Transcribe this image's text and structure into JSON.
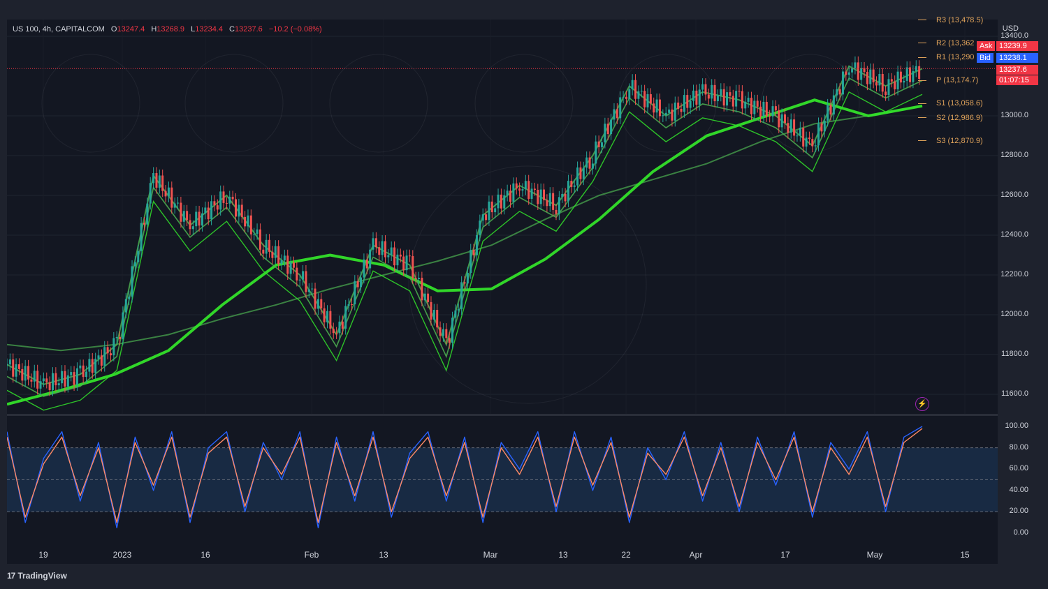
{
  "header": {
    "symbol": "US 100, 4h, CAPITALCOM",
    "o_label": "O",
    "o_value": "13247.4",
    "h_label": "H",
    "h_value": "13268.9",
    "l_label": "L",
    "l_value": "13234.4",
    "c_label": "C",
    "c_value": "13237.6",
    "change": "−10.2 (−0.08%)"
  },
  "currency": "USD",
  "tags": {
    "ask_label": "Ask",
    "ask_value": "13239.9",
    "bid_label": "Bid",
    "bid_value": "13238.1",
    "last_value": "13237.6",
    "countdown": "01:07:15"
  },
  "pivots": [
    {
      "label": "R3 (13,478.5)",
      "value": 13478.5
    },
    {
      "label": "R2 (13,362",
      "value": 13362
    },
    {
      "label": "R1 (13,290",
      "value": 13290
    },
    {
      "label": "P (13,174.7)",
      "value": 13174.7
    },
    {
      "label": "S1 (13,058.6)",
      "value": 13058.6
    },
    {
      "label": "S2 (12,986.9)",
      "value": 12986.9
    },
    {
      "label": "S3 (12,870.9)",
      "value": 12870.9
    }
  ],
  "branding": {
    "logo": "17",
    "name": "TradingView"
  },
  "colors": {
    "up": "#26a69a",
    "down": "#ef5350",
    "ribbon_up": "#33e02a",
    "ribbon_down": "#e0231c",
    "ma_up": "#4caf50",
    "ma_down": "#e57373",
    "stoch_k": "#2962ff",
    "stoch_d": "#ff8a65",
    "pivot": "#e0a35b",
    "band": "#1e3a5f"
  },
  "chart_data": [
    {
      "type": "line",
      "title": "",
      "ylabel": "",
      "ylim": [
        11500,
        13500
      ],
      "y_ticks": [
        "11600.0",
        "11800.0",
        "12000.0",
        "12200.0",
        "12400.0",
        "12600.0",
        "12800.0",
        "13000.0",
        "13400.0"
      ],
      "x_ticks": [
        "19",
        "2023",
        "16",
        "Feb",
        "13",
        "Mar",
        "13",
        "22",
        "Apr",
        "17",
        "May",
        "15"
      ],
      "last_price": 13237.6,
      "series": [
        {
          "values": [
            11850,
            11820,
            11850,
            11900,
            11980,
            12050,
            12130,
            12200,
            12270,
            12350,
            12480,
            12600,
            12680,
            12760,
            12870,
            12960,
            13000,
            13050
          ]
        },
        {
          "values": [
            11550,
            11620,
            11700,
            11820,
            12050,
            12250,
            12300,
            12250,
            12120,
            12130,
            12280,
            12480,
            12720,
            12900,
            12990,
            13080,
            13000,
            13050
          ]
        }
      ],
      "price_path": [
        11750,
        11650,
        11700,
        11850,
        12700,
        12450,
        12600,
        12350,
        12200,
        11900,
        12350,
        12250,
        11850,
        12500,
        12650,
        12550,
        12800,
        13150,
        13000,
        13120,
        13080,
        13000,
        12850,
        13250,
        13150,
        13237.6
      ]
    },
    {
      "type": "line",
      "ylim": [
        0,
        100
      ],
      "y_ticks": [
        "100.00",
        "80.00",
        "60.00",
        "40.00",
        "20.00",
        "0.00"
      ],
      "band": [
        20,
        80
      ],
      "midline": 50,
      "series": [
        {
          "values": [
            95,
            10,
            70,
            95,
            30,
            85,
            5,
            90,
            40,
            95,
            10,
            80,
            95,
            20,
            85,
            50,
            95,
            5,
            90,
            30,
            95,
            15,
            75,
            95,
            30,
            90,
            10,
            85,
            60,
            95,
            20,
            95,
            40,
            90,
            10,
            80,
            50,
            95,
            30,
            85,
            20,
            90,
            45,
            95,
            15,
            85,
            60,
            95,
            20,
            90,
            100
          ]
        },
        {
          "values": [
            90,
            15,
            65,
            90,
            35,
            80,
            10,
            85,
            45,
            90,
            15,
            75,
            90,
            25,
            80,
            55,
            90,
            10,
            85,
            35,
            90,
            20,
            70,
            90,
            35,
            85,
            15,
            80,
            55,
            90,
            25,
            90,
            45,
            85,
            15,
            75,
            55,
            90,
            35,
            80,
            25,
            85,
            50,
            90,
            20,
            80,
            55,
            90,
            25,
            85,
            98
          ]
        }
      ]
    }
  ]
}
